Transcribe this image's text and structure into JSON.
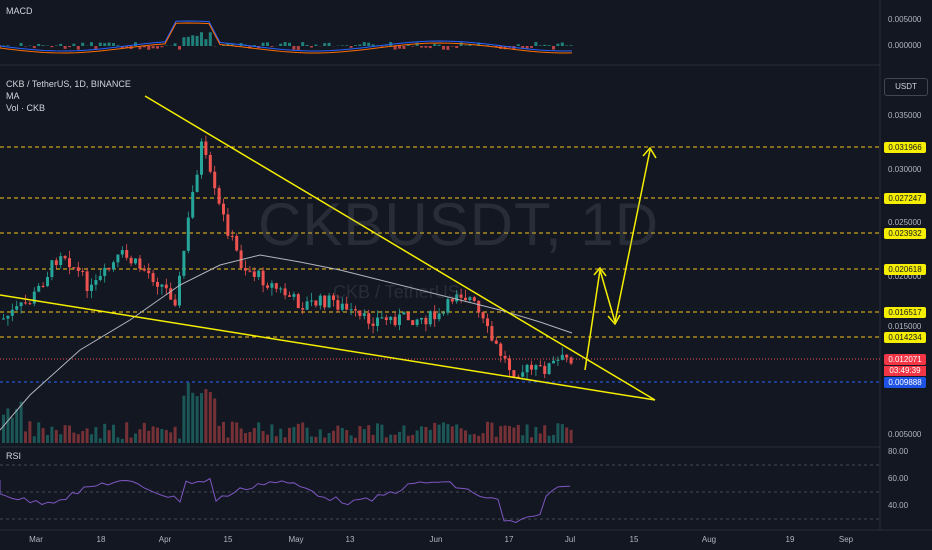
{
  "header": {
    "symbol_line": "CKB / TetherUS, 1D, BINANCE",
    "indicator_ma": "MA",
    "indicator_vol": "Vol · CKB",
    "macd_title": "MACD",
    "rsi_title": "RSI"
  },
  "watermark": {
    "main": "CKBUSDT, 1D",
    "sub": "CKB / TetherUS"
  },
  "currency_button": "USDT",
  "price_axis": [
    "0.035000",
    "0.030000",
    "0.025000",
    "0.020000",
    "0.015000",
    "0.005000"
  ],
  "macd_axis": [
    "0.005000",
    "0.000000"
  ],
  "rsi_axis": [
    "80.00",
    "60.00",
    "40.00"
  ],
  "time_axis": [
    "Mar",
    "18",
    "Apr",
    "15",
    "May",
    "13",
    "Jun",
    "17",
    "Jul",
    "15",
    "Aug",
    "19",
    "Sep"
  ],
  "levels": [
    {
      "label": "0.031966",
      "color": "yellow"
    },
    {
      "label": "0.027247",
      "color": "yellow"
    },
    {
      "label": "0.023932",
      "color": "yellow"
    },
    {
      "label": "0.020618",
      "color": "yellow"
    },
    {
      "label": "0.016517",
      "color": "yellow"
    },
    {
      "label": "0.014234",
      "color": "yellow"
    },
    {
      "label": "0.009888",
      "color": "blue"
    }
  ],
  "current_price": {
    "value": "0.012071",
    "countdown": "03:49:39"
  },
  "colors": {
    "bg": "#131722",
    "up": "#26a69a",
    "down": "#ef5350",
    "line": "#f5ee00",
    "ma": "#b2b5be",
    "level": "#f5c518",
    "support": "#2962ff"
  }
}
